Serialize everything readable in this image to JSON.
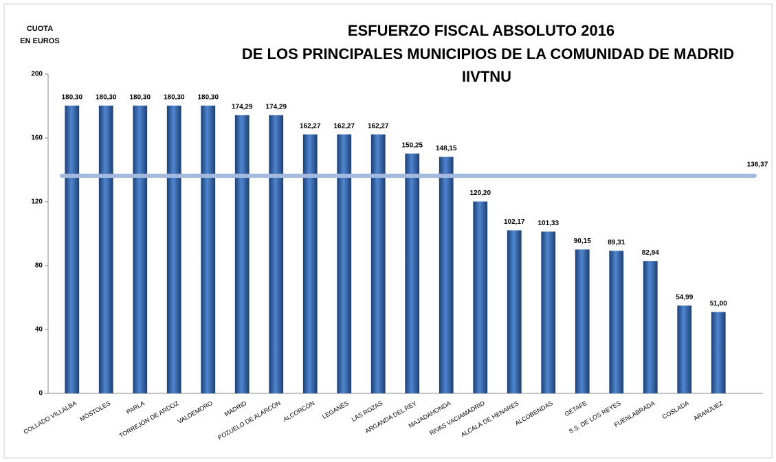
{
  "chart_data": {
    "type": "bar",
    "title": [
      "ESFUERZO FISCAL ABSOLUTO 2016",
      "DE LOS PRINCIPALES MUNICIPIOS DE LA COMUNIDAD DE MADRID",
      "IIVTNU"
    ],
    "ylabel": [
      "CUOTA",
      "EN EUROS"
    ],
    "categories": [
      "COLLADO VILLALBA",
      "MÓSTOLES",
      "PARLA",
      "TORREJÓN DE ARDOZ",
      "VALDEMORO",
      "MADRID",
      "POZUELO DE ALARCÓN",
      "ALCORCÓN",
      "LEGANÉS",
      "LAS ROZAS",
      "ARGANDA DEL REY",
      "MAJADAHONDA",
      "RIVAS VACIAMADRID",
      "ALCALÁ DE HENARES",
      "ALCOBENDAS",
      "GETAFE",
      "S.S. DE LOS REYES",
      "FUENLABRADA",
      "COSLADA",
      "ARANJUEZ"
    ],
    "values": [
      180.3,
      180.3,
      180.3,
      180.3,
      180.3,
      174.29,
      174.29,
      162.27,
      162.27,
      162.27,
      150.25,
      148.15,
      120.2,
      102.17,
      101.33,
      90.15,
      89.31,
      82.94,
      54.99,
      51.0
    ],
    "value_labels": [
      "180,30",
      "180,30",
      "180,30",
      "180,30",
      "180,30",
      "174,29",
      "174,29",
      "162,27",
      "162,27",
      "162,27",
      "150,25",
      "148,15",
      "120,20",
      "102,17",
      "101,33",
      "90,15",
      "89,31",
      "82,94",
      "54,99",
      "51,00"
    ],
    "average": 136.37,
    "average_label": "136,37",
    "color": "#2e63a6",
    "average_color": "#a3b9dd",
    "ylim": [
      0,
      200
    ],
    "yticks": [
      0,
      40,
      80,
      120,
      160,
      200
    ]
  }
}
